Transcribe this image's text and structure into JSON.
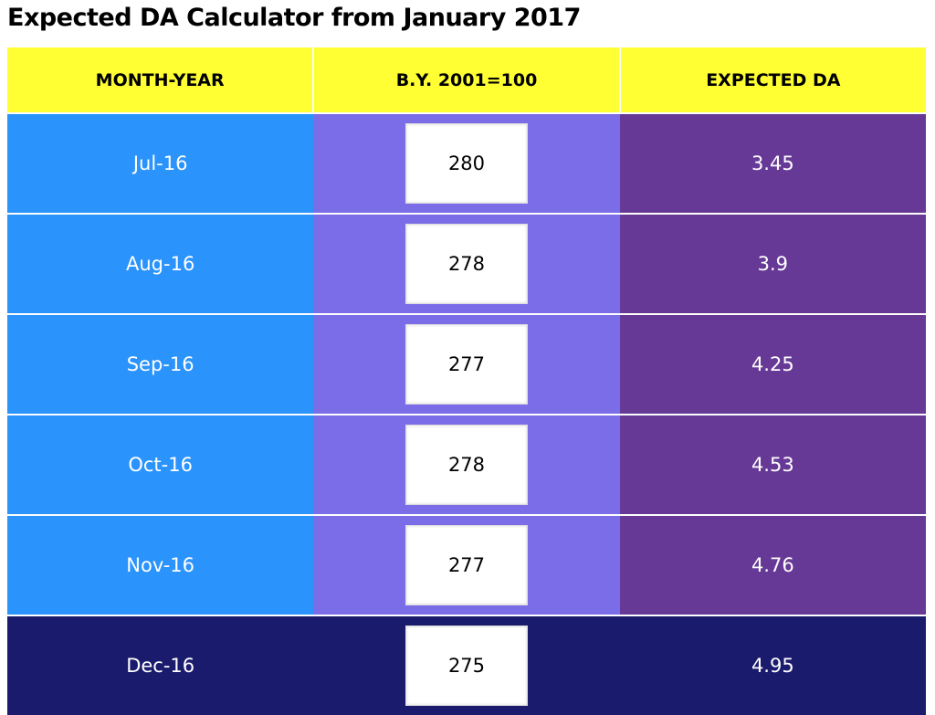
{
  "title": "Expected DA Calculator from January 2017",
  "headers": [
    "MONTH-YEAR",
    "B.Y. 2001=100",
    "EXPECTED DA"
  ],
  "rows": [
    {
      "month": "Jul-16",
      "index": "280",
      "da": "3.45"
    },
    {
      "month": "Aug-16",
      "index": "278",
      "da": "3.9"
    },
    {
      "month": "Sep-16",
      "index": "277",
      "da": "4.25"
    },
    {
      "month": "Oct-16",
      "index": "278",
      "da": "4.53"
    },
    {
      "month": "Nov-16",
      "index": "277",
      "da": "4.76"
    },
    {
      "month": "Dec-16",
      "index": "275",
      "da": "4.95"
    }
  ],
  "colors": {
    "header": "#ffff33",
    "month": "#2a93fc",
    "index": "#7b6ce8",
    "da": "#663996",
    "last_row": "#1b1b6e"
  }
}
